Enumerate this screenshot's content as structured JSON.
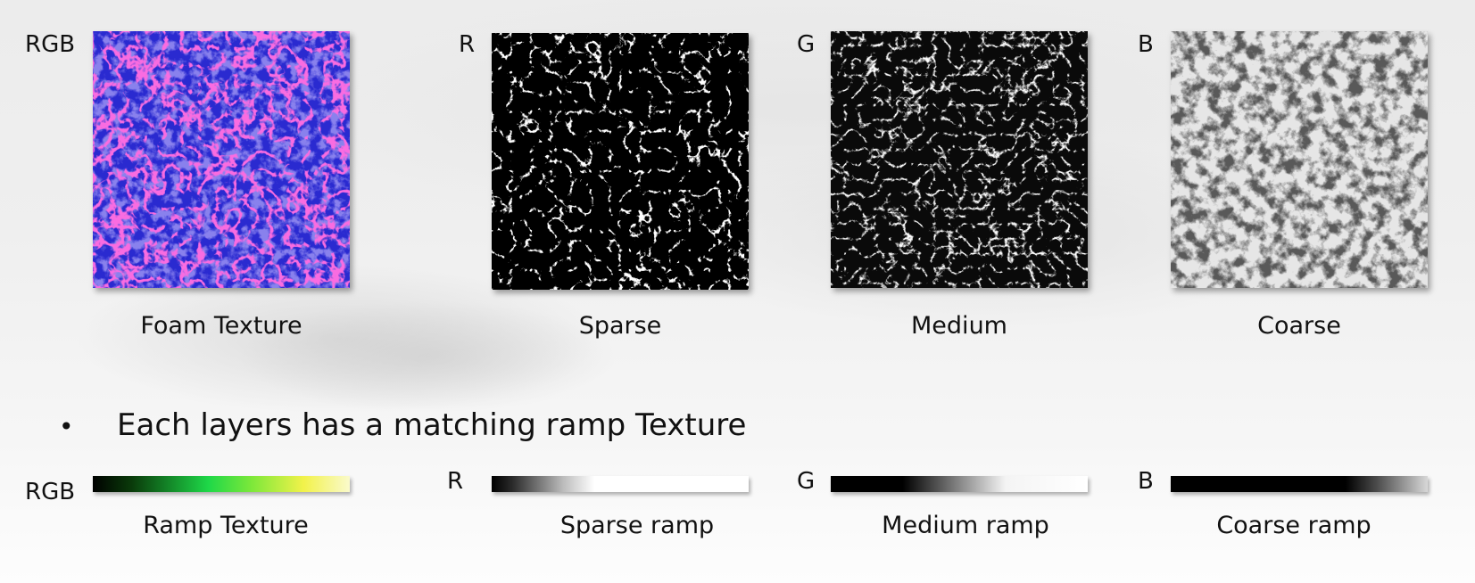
{
  "top_row": [
    {
      "channel": "RGB",
      "caption": "Foam Texture"
    },
    {
      "channel": "R",
      "caption": "Sparse"
    },
    {
      "channel": "G",
      "caption": "Medium"
    },
    {
      "channel": "B",
      "caption": "Coarse"
    }
  ],
  "bullet": {
    "symbol": "•",
    "text": "Each layers has a matching ramp Texture"
  },
  "bottom_row": [
    {
      "channel": "RGB",
      "caption": "Ramp Texture"
    },
    {
      "channel": "R",
      "caption": "Sparse ramp"
    },
    {
      "channel": "G",
      "caption": "Medium ramp"
    },
    {
      "channel": "B",
      "caption": "Coarse ramp"
    }
  ]
}
